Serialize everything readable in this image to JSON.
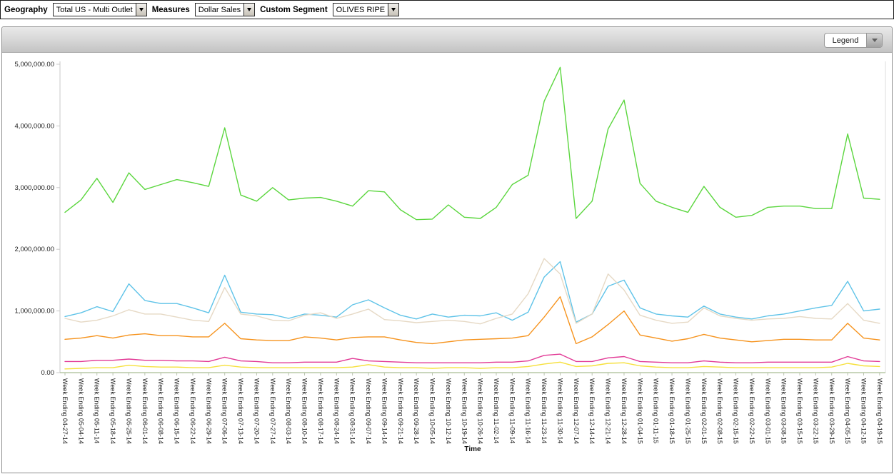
{
  "toolbar": {
    "geography_label": "Geography",
    "geography_value": "Total US - Multi Outlet",
    "measures_label": "Measures",
    "measures_value": "Dollar Sales",
    "custom_segment_label": "Custom Segment",
    "custom_segment_value": "OLIVES RIPE"
  },
  "chart_header": {
    "legend_label": "Legend"
  },
  "chart_data": {
    "type": "line",
    "title": "",
    "xlabel": "Time",
    "ylabel": "",
    "ylim": [
      0,
      5000000
    ],
    "y_ticks": [
      "0.00",
      "1,000,000.00",
      "2,000,000.00",
      "3,000,000.00",
      "4,000,000.00",
      "5,000,000.00"
    ],
    "grid": false,
    "legend_position": "collapsed-dropdown-top-right",
    "categories": [
      "Week Ending 04-27-14",
      "Week Ending 05-04-14",
      "Week Ending 05-11-14",
      "Week Ending 05-18-14",
      "Week Ending 05-25-14",
      "Week Ending 06-01-14",
      "Week Ending 06-08-14",
      "Week Ending 06-15-14",
      "Week Ending 06-22-14",
      "Week Ending 06-29-14",
      "Week Ending 07-06-14",
      "Week Ending 07-13-14",
      "Week Ending 07-20-14",
      "Week Ending 07-27-14",
      "Week Ending 08-03-14",
      "Week Ending 08-10-14",
      "Week Ending 08-17-14",
      "Week Ending 08-24-14",
      "Week Ending 08-31-14",
      "Week Ending 09-07-14",
      "Week Ending 09-14-14",
      "Week Ending 09-21-14",
      "Week Ending 09-28-14",
      "Week Ending 10-05-14",
      "Week Ending 10-12-14",
      "Week Ending 10-19-14",
      "Week Ending 10-26-14",
      "Week Ending 11-02-14",
      "Week Ending 11-09-14",
      "Week Ending 11-16-14",
      "Week Ending 11-23-14",
      "Week Ending 11-30-14",
      "Week Ending 12-07-14",
      "Week Ending 12-14-14",
      "Week Ending 12-21-14",
      "Week Ending 12-28-14",
      "Week Ending 01-04-15",
      "Week Ending 01-11-15",
      "Week Ending 01-18-15",
      "Week Ending 01-25-15",
      "Week Ending 02-01-15",
      "Week Ending 02-08-15",
      "Week Ending 02-15-15",
      "Week Ending 02-22-15",
      "Week Ending 03-01-15",
      "Week Ending 03-08-15",
      "Week Ending 03-15-15",
      "Week Ending 03-22-15",
      "Week Ending 03-29-15",
      "Week Ending 04-05-15",
      "Week Ending 04-12-15",
      "Week Ending 04-19-15"
    ],
    "series": [
      {
        "name": "green-series",
        "color": "#5bd63e",
        "values": [
          2600000,
          2800000,
          3150000,
          2760000,
          3240000,
          2970000,
          3050000,
          3130000,
          3080000,
          3020000,
          3970000,
          2880000,
          2780000,
          3000000,
          2800000,
          2830000,
          2840000,
          2780000,
          2700000,
          2950000,
          2930000,
          2640000,
          2480000,
          2490000,
          2720000,
          2520000,
          2500000,
          2680000,
          3050000,
          3200000,
          4400000,
          4950000,
          2500000,
          2780000,
          3950000,
          4420000,
          3070000,
          2780000,
          2680000,
          2600000,
          3020000,
          2680000,
          2520000,
          2550000,
          2680000,
          2700000,
          2700000,
          2660000,
          2660000,
          3870000,
          2830000,
          2810000
        ]
      },
      {
        "name": "blue-series",
        "color": "#5fc3e8",
        "values": [
          910000,
          970000,
          1070000,
          990000,
          1440000,
          1170000,
          1120000,
          1120000,
          1050000,
          970000,
          1580000,
          980000,
          950000,
          940000,
          880000,
          950000,
          930000,
          900000,
          1100000,
          1180000,
          1050000,
          930000,
          870000,
          950000,
          900000,
          930000,
          920000,
          970000,
          850000,
          980000,
          1550000,
          1800000,
          820000,
          950000,
          1400000,
          1500000,
          1050000,
          950000,
          920000,
          900000,
          1080000,
          950000,
          900000,
          870000,
          920000,
          950000,
          1000000,
          1050000,
          1090000,
          1480000,
          1000000,
          1030000
        ]
      },
      {
        "name": "tan-series",
        "color": "#e6d9c5",
        "values": [
          880000,
          820000,
          850000,
          920000,
          1020000,
          950000,
          950000,
          900000,
          850000,
          830000,
          1380000,
          950000,
          920000,
          850000,
          840000,
          930000,
          970000,
          880000,
          950000,
          1030000,
          860000,
          840000,
          810000,
          830000,
          850000,
          830000,
          790000,
          880000,
          950000,
          1280000,
          1850000,
          1600000,
          800000,
          950000,
          1600000,
          1340000,
          930000,
          850000,
          800000,
          820000,
          1050000,
          920000,
          880000,
          850000,
          870000,
          880000,
          910000,
          880000,
          870000,
          1120000,
          850000,
          800000
        ]
      },
      {
        "name": "orange-series",
        "color": "#f6931d",
        "values": [
          540000,
          560000,
          600000,
          560000,
          610000,
          630000,
          600000,
          600000,
          580000,
          580000,
          800000,
          550000,
          530000,
          520000,
          520000,
          580000,
          560000,
          530000,
          570000,
          580000,
          580000,
          530000,
          490000,
          470000,
          500000,
          530000,
          540000,
          550000,
          560000,
          600000,
          900000,
          1230000,
          470000,
          580000,
          780000,
          1000000,
          610000,
          560000,
          510000,
          550000,
          620000,
          560000,
          530000,
          500000,
          520000,
          540000,
          540000,
          530000,
          530000,
          800000,
          560000,
          530000
        ]
      },
      {
        "name": "magenta-series",
        "color": "#e23a96",
        "values": [
          180000,
          180000,
          200000,
          200000,
          220000,
          200000,
          200000,
          190000,
          190000,
          180000,
          250000,
          190000,
          180000,
          160000,
          160000,
          170000,
          170000,
          170000,
          230000,
          190000,
          180000,
          170000,
          160000,
          160000,
          160000,
          160000,
          160000,
          170000,
          170000,
          190000,
          280000,
          300000,
          180000,
          180000,
          240000,
          260000,
          180000,
          170000,
          160000,
          160000,
          190000,
          170000,
          160000,
          160000,
          170000,
          170000,
          170000,
          170000,
          170000,
          260000,
          190000,
          180000
        ]
      },
      {
        "name": "yellow-series",
        "color": "#f6e03b",
        "values": [
          60000,
          70000,
          80000,
          80000,
          120000,
          100000,
          90000,
          90000,
          80000,
          80000,
          120000,
          90000,
          80000,
          80000,
          80000,
          80000,
          80000,
          80000,
          90000,
          130000,
          90000,
          80000,
          80000,
          70000,
          80000,
          80000,
          70000,
          80000,
          80000,
          100000,
          140000,
          170000,
          100000,
          110000,
          150000,
          160000,
          110000,
          90000,
          80000,
          80000,
          100000,
          90000,
          80000,
          80000,
          80000,
          80000,
          80000,
          80000,
          90000,
          150000,
          110000,
          100000
        ]
      }
    ]
  }
}
